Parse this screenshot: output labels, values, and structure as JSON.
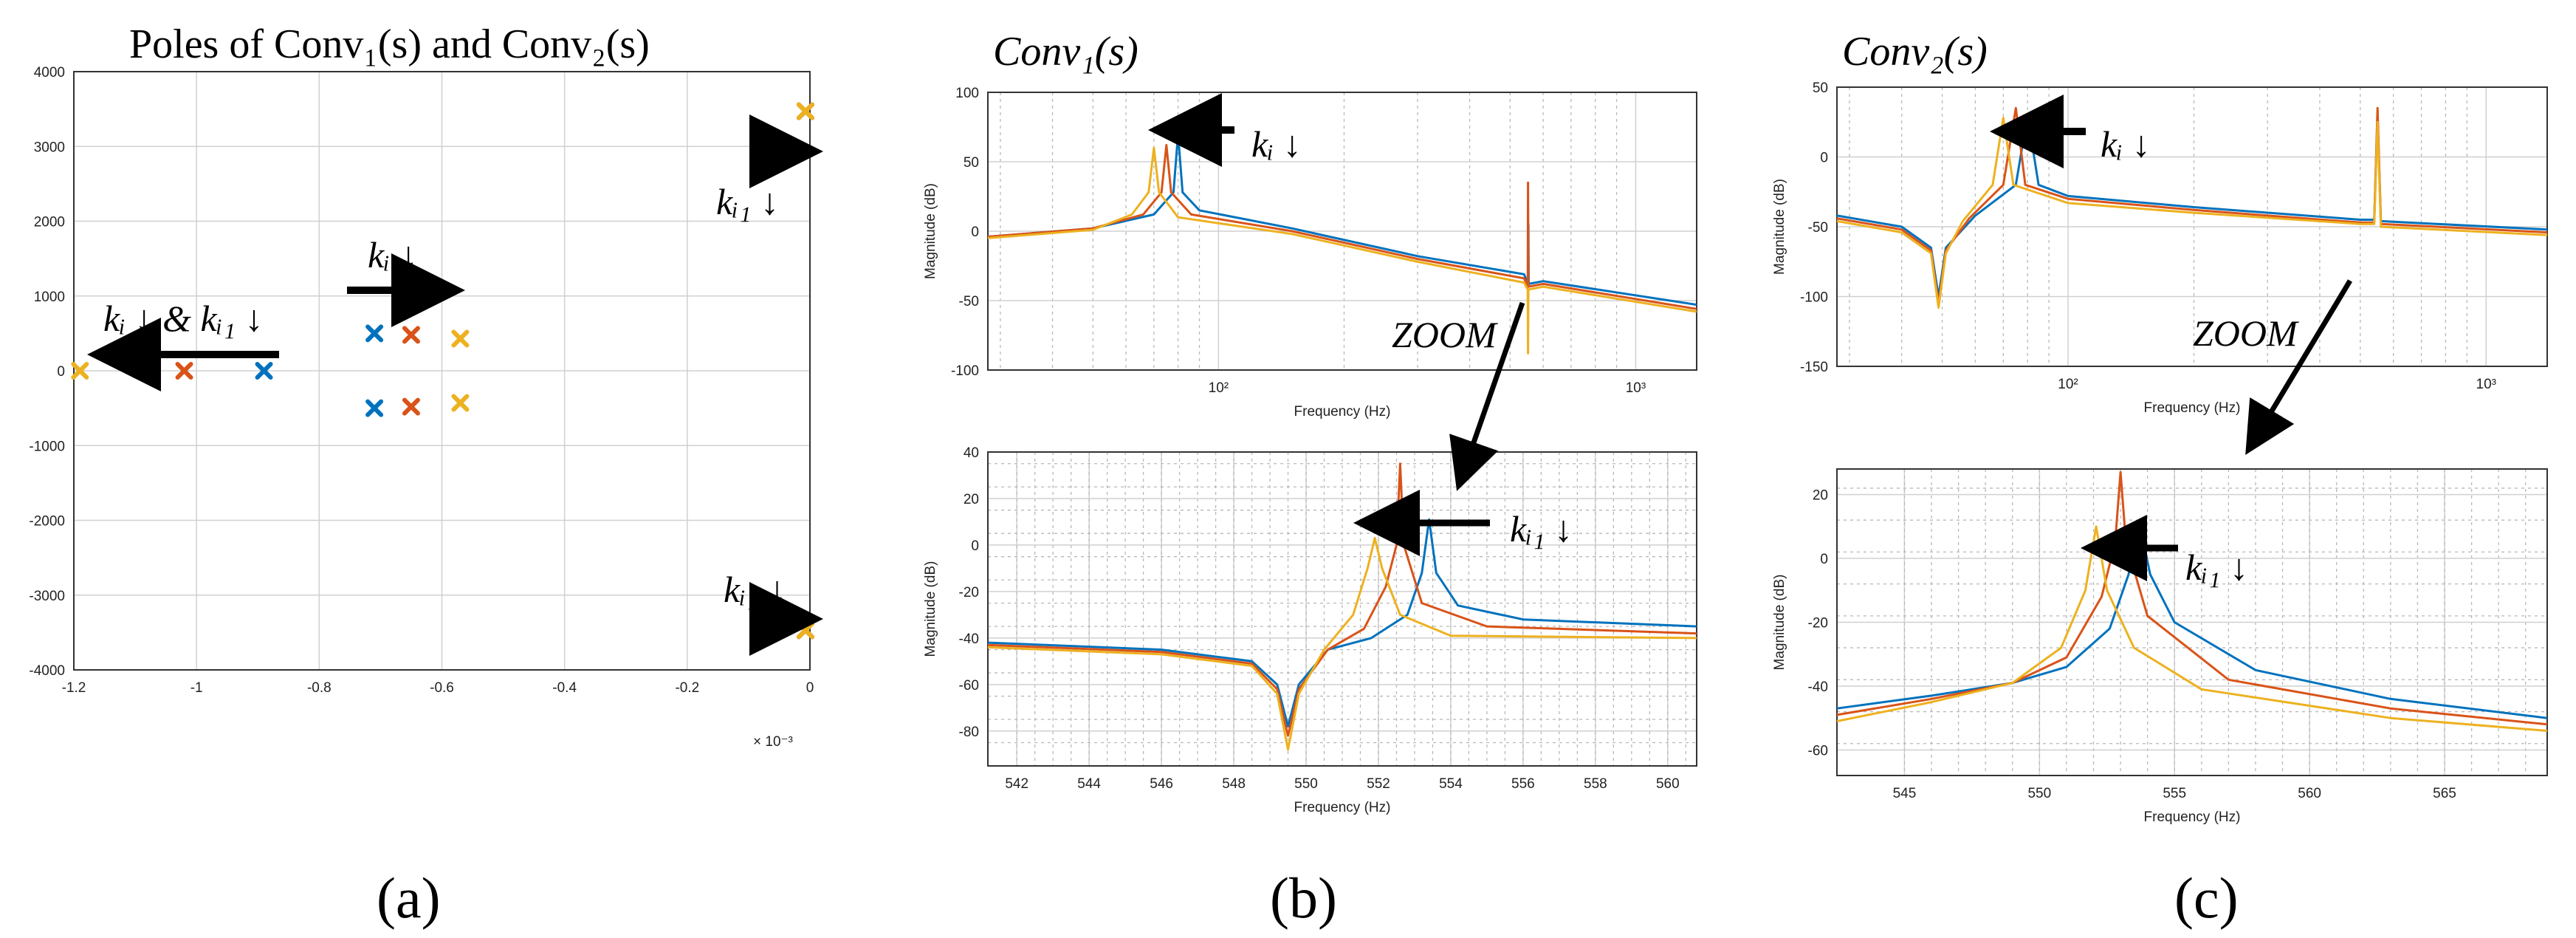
{
  "colors": {
    "blue": "#0072BD",
    "red": "#D95319",
    "yellow": "#EDB120"
  },
  "panel_labels": {
    "a": "(a)",
    "b": "(b)",
    "c": "(c)"
  },
  "annotations": {
    "ki_down": "kᵢ ↓",
    "ki1_down": "kᵢ₁ ↓",
    "ki_and_ki1": "kᵢ ↓ & kᵢ₁ ↓",
    "zoom": "ZOOM"
  },
  "chart_data": [
    {
      "id": "poles",
      "type": "scatter",
      "title": "Poles of Conv₁(s) and Conv₂(s)",
      "xlabel": "× 10⁻³",
      "ylabel": "",
      "xlim": [
        -1.2,
        0
      ],
      "ylim": [
        -4000,
        4000
      ],
      "xticks": [
        -1.2,
        -1,
        -0.8,
        -0.6,
        -0.4,
        -0.2,
        0
      ],
      "xtick_labels": [
        "-1.2",
        "-1",
        "-0.8",
        "-0.6",
        "-0.4",
        "-0.2",
        "0"
      ],
      "yticks": [
        -4000,
        -3000,
        -2000,
        -1000,
        0,
        1000,
        2000,
        3000,
        4000
      ],
      "ytick_labels": [
        "-4000",
        "-3000",
        "-2000",
        "-1000",
        "0",
        "1000",
        "2000",
        "3000",
        "4000"
      ],
      "grid": true,
      "series": [
        {
          "name": "blue",
          "color": "#0072BD",
          "points": [
            [
              -0.89,
              0
            ],
            [
              -0.71,
              500
            ],
            [
              -0.71,
              -500
            ],
            [
              -0.004,
              3470
            ],
            [
              -0.004,
              -3470
            ]
          ]
        },
        {
          "name": "red",
          "color": "#D95319",
          "points": [
            [
              -1.02,
              0
            ],
            [
              -0.65,
              480
            ],
            [
              -0.65,
              -480
            ],
            [
              -0.002,
              3470
            ],
            [
              -0.002,
              -3470
            ]
          ]
        },
        {
          "name": "yellow",
          "color": "#EDB120",
          "points": [
            [
              -1.19,
              0
            ],
            [
              -0.57,
              430
            ],
            [
              -0.57,
              -430
            ],
            [
              0.0,
              3470
            ],
            [
              0.0,
              -3470
            ]
          ]
        }
      ]
    },
    {
      "id": "conv1_bode",
      "type": "line",
      "title": "Conv₁(s)",
      "xlabel": "Frequency  (Hz)",
      "ylabel": "Magnitude (dB)",
      "xscale": "log",
      "xlim": [
        28,
        1400
      ],
      "ylim": [
        -100,
        100
      ],
      "yticks": [
        -100,
        -50,
        0,
        50,
        100
      ],
      "ytick_labels": [
        "-100",
        "-50",
        "0",
        "50",
        "100"
      ],
      "xticks": [
        100,
        1000
      ],
      "xtick_labels": [
        "10²",
        "10³"
      ],
      "grid": true,
      "series": [
        {
          "name": "blue",
          "color": "#0072BD",
          "points": [
            [
              28,
              -4
            ],
            [
              50,
              2
            ],
            [
              70,
              12
            ],
            [
              78,
              28
            ],
            [
              80,
              70
            ],
            [
              82,
              28
            ],
            [
              90,
              15
            ],
            [
              150,
              2
            ],
            [
              300,
              -18
            ],
            [
              540,
              -31
            ],
            [
              552,
              -38
            ],
            [
              553,
              5
            ],
            [
              554,
              -38
            ],
            [
              600,
              -36
            ],
            [
              1400,
              -53
            ]
          ]
        },
        {
          "name": "red",
          "color": "#D95319",
          "points": [
            [
              28,
              -4
            ],
            [
              50,
              2
            ],
            [
              66,
              12
            ],
            [
              73,
              28
            ],
            [
              75,
              62
            ],
            [
              77,
              28
            ],
            [
              86,
              12
            ],
            [
              150,
              0
            ],
            [
              300,
              -20
            ],
            [
              540,
              -34
            ],
            [
              551,
              -40
            ],
            [
              552,
              35
            ],
            [
              553,
              -40
            ],
            [
              600,
              -38
            ],
            [
              1400,
              -56
            ]
          ]
        },
        {
          "name": "yellow",
          "color": "#EDB120",
          "points": [
            [
              28,
              -5
            ],
            [
              50,
              1
            ],
            [
              62,
              12
            ],
            [
              68,
              28
            ],
            [
              70,
              60
            ],
            [
              72,
              28
            ],
            [
              80,
              10
            ],
            [
              150,
              -2
            ],
            [
              300,
              -22
            ],
            [
              540,
              -37
            ],
            [
              551,
              -42
            ],
            [
              552,
              -88
            ],
            [
              553,
              -42
            ],
            [
              600,
              -40
            ],
            [
              1400,
              -58
            ]
          ]
        }
      ]
    },
    {
      "id": "conv1_zoom",
      "type": "line",
      "title": "",
      "xlabel": "Frequency (Hz)",
      "ylabel": "Magnitude (dB)",
      "xlim": [
        541.2,
        560.8
      ],
      "ylim": [
        -95,
        40
      ],
      "yticks": [
        -80,
        -60,
        -40,
        -20,
        0,
        20,
        40
      ],
      "ytick_labels": [
        "-80",
        "-60",
        "-40",
        "-20",
        "0",
        "20",
        "40"
      ],
      "xticks": [
        542,
        544,
        546,
        548,
        550,
        552,
        554,
        556,
        558,
        560
      ],
      "xtick_labels": [
        "542",
        "544",
        "546",
        "548",
        "550",
        "552",
        "554",
        "556",
        "558",
        "560"
      ],
      "grid": true,
      "series": [
        {
          "name": "blue",
          "color": "#0072BD",
          "points": [
            [
              541.2,
              -42
            ],
            [
              546,
              -45
            ],
            [
              548.5,
              -50
            ],
            [
              549.2,
              -60
            ],
            [
              549.5,
              -78
            ],
            [
              549.8,
              -60
            ],
            [
              550.6,
              -45
            ],
            [
              551.8,
              -40
            ],
            [
              552.8,
              -30
            ],
            [
              553.2,
              -12
            ],
            [
              553.4,
              11
            ],
            [
              553.6,
              -12
            ],
            [
              554.2,
              -26
            ],
            [
              556,
              -32
            ],
            [
              560.8,
              -35
            ]
          ]
        },
        {
          "name": "red",
          "color": "#D95319",
          "points": [
            [
              541.2,
              -43
            ],
            [
              546,
              -46
            ],
            [
              548.5,
              -51
            ],
            [
              549.2,
              -62
            ],
            [
              549.5,
              -82
            ],
            [
              549.8,
              -62
            ],
            [
              550.6,
              -45
            ],
            [
              551.6,
              -36
            ],
            [
              552.2,
              -18
            ],
            [
              552.5,
              0
            ],
            [
              552.6,
              35
            ],
            [
              552.7,
              0
            ],
            [
              553.2,
              -25
            ],
            [
              555,
              -35
            ],
            [
              560.8,
              -38
            ]
          ]
        },
        {
          "name": "yellow",
          "color": "#EDB120",
          "points": [
            [
              541.2,
              -44
            ],
            [
              546,
              -47
            ],
            [
              548.5,
              -52
            ],
            [
              549.2,
              -64
            ],
            [
              549.5,
              -88
            ],
            [
              549.8,
              -64
            ],
            [
              550.5,
              -45
            ],
            [
              551.3,
              -30
            ],
            [
              551.7,
              -10
            ],
            [
              551.9,
              3
            ],
            [
              552.1,
              -10
            ],
            [
              552.6,
              -30
            ],
            [
              554,
              -39
            ],
            [
              560.8,
              -40
            ]
          ]
        }
      ]
    },
    {
      "id": "conv2_bode",
      "type": "line",
      "title": "Conv₂(s)",
      "xlabel": "Frequency  (Hz)",
      "ylabel": "Magnitude (dB)",
      "xscale": "log",
      "xlim": [
        28,
        1400
      ],
      "ylim": [
        -150,
        50
      ],
      "yticks": [
        -150,
        -100,
        -50,
        0,
        50
      ],
      "ytick_labels": [
        "-150",
        "-100",
        "-50",
        "0",
        "50"
      ],
      "xticks": [
        100,
        1000
      ],
      "xtick_labels": [
        "10²",
        "10³"
      ],
      "grid": true,
      "series": [
        {
          "name": "blue",
          "color": "#0072BD",
          "points": [
            [
              28,
              -42
            ],
            [
              40,
              -50
            ],
            [
              47,
              -65
            ],
            [
              49,
              -100
            ],
            [
              51,
              -65
            ],
            [
              60,
              -42
            ],
            [
              75,
              -20
            ],
            [
              80,
              30
            ],
            [
              85,
              -20
            ],
            [
              100,
              -28
            ],
            [
              200,
              -36
            ],
            [
              500,
              -45
            ],
            [
              540,
              -45
            ],
            [
              550,
              30
            ],
            [
              560,
              -46
            ],
            [
              1400,
              -52
            ]
          ]
        },
        {
          "name": "red",
          "color": "#D95319",
          "points": [
            [
              28,
              -44
            ],
            [
              40,
              -52
            ],
            [
              47,
              -67
            ],
            [
              49,
              -105
            ],
            [
              51,
              -67
            ],
            [
              58,
              -44
            ],
            [
              70,
              -20
            ],
            [
              75,
              35
            ],
            [
              79,
              -20
            ],
            [
              100,
              -30
            ],
            [
              200,
              -38
            ],
            [
              500,
              -47
            ],
            [
              540,
              -47
            ],
            [
              550,
              35
            ],
            [
              560,
              -48
            ],
            [
              1400,
              -54
            ]
          ]
        },
        {
          "name": "yellow",
          "color": "#EDB120",
          "points": [
            [
              28,
              -46
            ],
            [
              40,
              -54
            ],
            [
              47,
              -69
            ],
            [
              49,
              -108
            ],
            [
              51,
              -69
            ],
            [
              56,
              -46
            ],
            [
              66,
              -20
            ],
            [
              70,
              28
            ],
            [
              74,
              -20
            ],
            [
              100,
              -33
            ],
            [
              200,
              -40
            ],
            [
              500,
              -48
            ],
            [
              540,
              -48
            ],
            [
              550,
              25
            ],
            [
              560,
              -50
            ],
            [
              1400,
              -56
            ]
          ]
        }
      ]
    },
    {
      "id": "conv2_zoom",
      "type": "line",
      "title": "",
      "xlabel": "Frequency (Hz)",
      "ylabel": "Magnitude (dB)",
      "xlim": [
        542.5,
        568.8
      ],
      "ylim": [
        -68,
        28
      ],
      "yticks": [
        -60,
        -40,
        -20,
        0,
        20
      ],
      "ytick_labels": [
        "-60",
        "-40",
        "-20",
        "0",
        "20"
      ],
      "xticks": [
        545,
        550,
        555,
        560,
        565
      ],
      "xtick_labels": [
        "545",
        "550",
        "555",
        "560",
        "565"
      ],
      "grid": true,
      "series": [
        {
          "name": "blue",
          "color": "#0072BD",
          "points": [
            [
              542.5,
              -47
            ],
            [
              546,
              -43
            ],
            [
              549,
              -39
            ],
            [
              551,
              -34
            ],
            [
              552.6,
              -22
            ],
            [
              553.3,
              -5
            ],
            [
              553.7,
              11
            ],
            [
              554.1,
              -5
            ],
            [
              555,
              -20
            ],
            [
              558,
              -35
            ],
            [
              563,
              -44
            ],
            [
              568.8,
              -50
            ]
          ]
        },
        {
          "name": "red",
          "color": "#D95319",
          "points": [
            [
              542.5,
              -49
            ],
            [
              546,
              -44
            ],
            [
              549,
              -39
            ],
            [
              551,
              -31
            ],
            [
              552.3,
              -12
            ],
            [
              552.8,
              5
            ],
            [
              553,
              27
            ],
            [
              553.2,
              5
            ],
            [
              554,
              -18
            ],
            [
              557,
              -38
            ],
            [
              563,
              -47
            ],
            [
              568.8,
              -52
            ]
          ]
        },
        {
          "name": "yellow",
          "color": "#EDB120",
          "points": [
            [
              542.5,
              -51
            ],
            [
              546,
              -45
            ],
            [
              549,
              -39
            ],
            [
              550.8,
              -28
            ],
            [
              551.7,
              -10
            ],
            [
              552.1,
              10
            ],
            [
              552.5,
              -10
            ],
            [
              553.5,
              -28
            ],
            [
              556,
              -41
            ],
            [
              563,
              -50
            ],
            [
              568.8,
              -54
            ]
          ]
        }
      ]
    }
  ]
}
